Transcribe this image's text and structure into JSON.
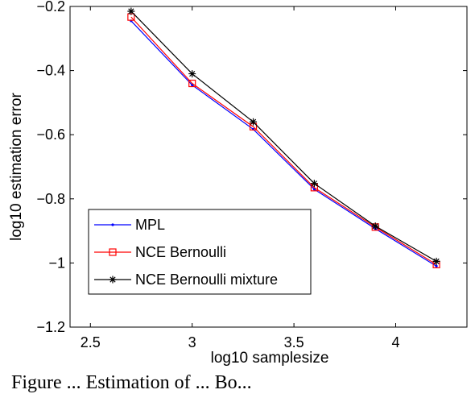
{
  "chart_data": {
    "type": "line",
    "xlabel": "log10 samplesize",
    "ylabel": "log10 estimation error",
    "xlim": [
      2.4,
      4.35
    ],
    "ylim": [
      -1.2,
      -0.2
    ],
    "xticks": [
      "2.5",
      "3",
      "3.5",
      "4"
    ],
    "xtick_values": [
      2.5,
      3,
      3.5,
      4
    ],
    "yticks": [
      "−0.2",
      "−0.4",
      "−0.6",
      "−0.8",
      "−1",
      "−1.2"
    ],
    "ytick_values": [
      -0.2,
      -0.4,
      -0.6,
      -0.8,
      -1.0,
      -1.2
    ],
    "grid": false,
    "legend_position": "bottom-left",
    "x": [
      2.7,
      3.0,
      3.3,
      3.6,
      3.9,
      4.2
    ],
    "series": [
      {
        "name": "MPL",
        "color": "#0000ff",
        "marker": "dot",
        "values": [
          -0.245,
          -0.445,
          -0.583,
          -0.77,
          -0.893,
          -1.01
        ]
      },
      {
        "name": "NCE Bernoulli",
        "color": "#ff0000",
        "marker": "square",
        "values": [
          -0.233,
          -0.44,
          -0.575,
          -0.765,
          -0.888,
          -1.005
        ]
      },
      {
        "name": "NCE Bernoulli mixture",
        "color": "#000000",
        "marker": "asterisk",
        "values": [
          -0.215,
          -0.41,
          -0.56,
          -0.752,
          -0.885,
          -0.995
        ]
      }
    ]
  },
  "caption": "Figure ... Estimation of ... Bo..."
}
